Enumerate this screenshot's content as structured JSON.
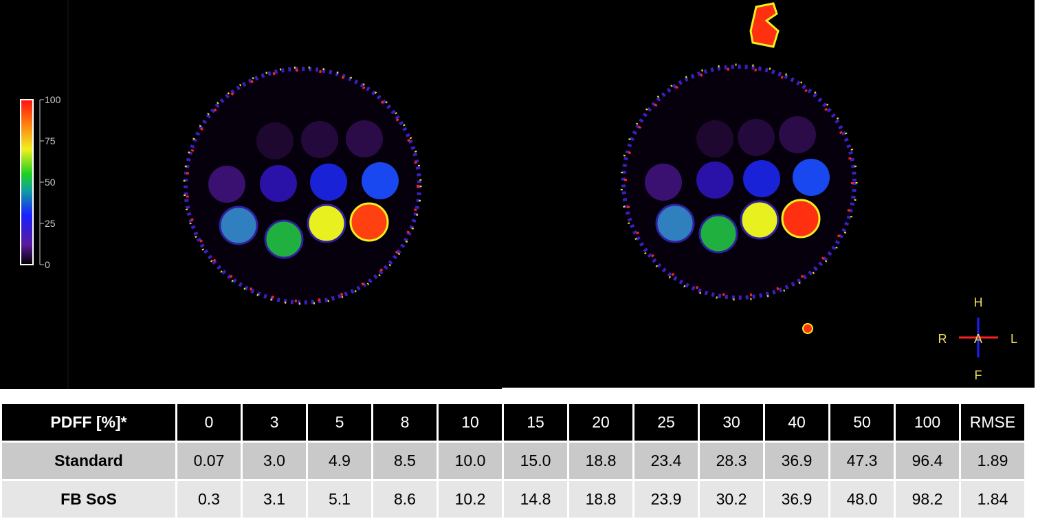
{
  "colorbar": {
    "ticks": [
      "100",
      "75",
      "50",
      "25",
      "0"
    ]
  },
  "orientation": {
    "top": "H",
    "left": "R",
    "center": "A",
    "right": "L",
    "bottom": "F"
  },
  "table": {
    "header": [
      "PDFF [%]*",
      "0",
      "3",
      "5",
      "8",
      "10",
      "15",
      "20",
      "25",
      "30",
      "40",
      "50",
      "100",
      "RMSE"
    ],
    "rows": [
      [
        "Standard",
        "0.07",
        "3.0",
        "4.9",
        "8.5",
        "10.0",
        "15.0",
        "18.8",
        "23.4",
        "28.3",
        "36.9",
        "47.3",
        "96.4",
        "1.89"
      ],
      [
        "FB SoS",
        "0.3",
        "3.1",
        "5.1",
        "8.6",
        "10.2",
        "14.8",
        "18.8",
        "23.9",
        "30.2",
        "36.9",
        "48.0",
        "98.2",
        "1.84"
      ]
    ]
  }
}
